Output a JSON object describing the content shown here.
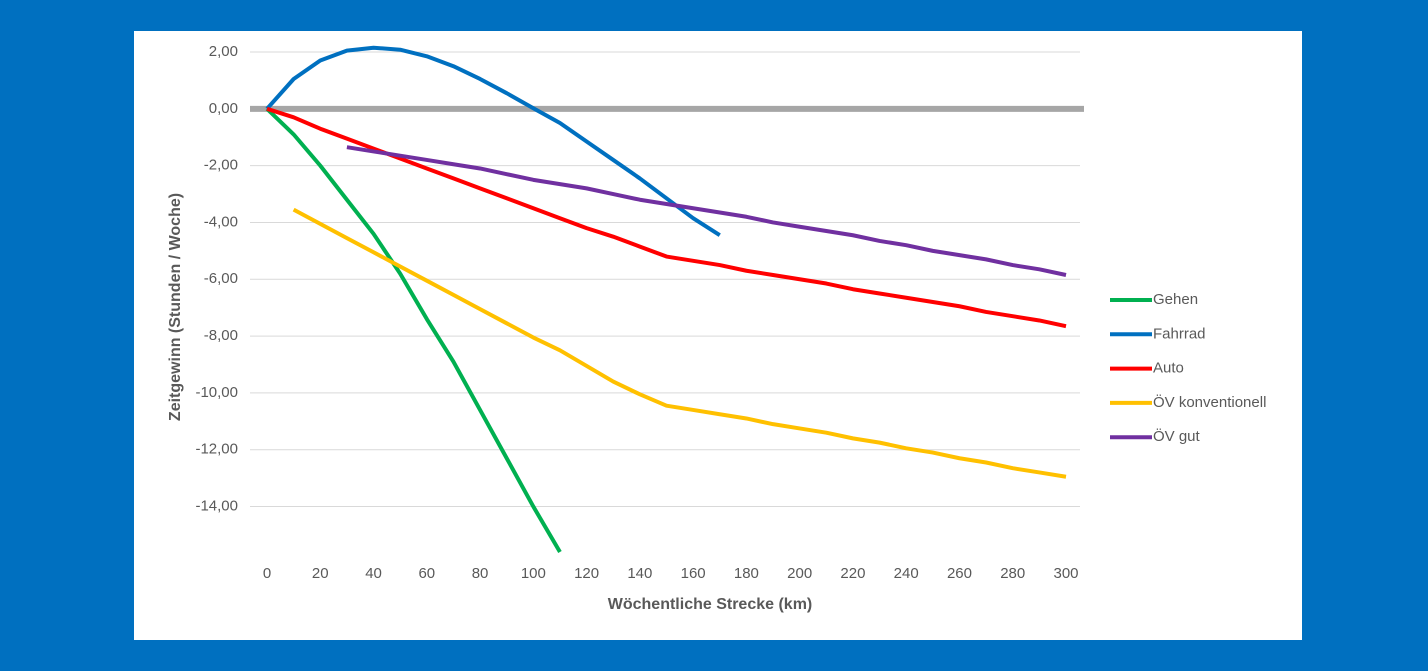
{
  "chart_data": {
    "type": "line",
    "x_label": "Wöchentliche Strecke (km)",
    "y_label": "Zeitgewinn (Stunden / Woche)",
    "x": [
      0,
      10,
      20,
      30,
      40,
      50,
      60,
      70,
      80,
      90,
      100,
      110,
      120,
      130,
      140,
      150,
      160,
      170,
      180,
      190,
      200,
      210,
      220,
      230,
      240,
      250,
      260,
      270,
      280,
      290,
      300
    ],
    "series": [
      {
        "name": "Gehen",
        "color": "#00b050",
        "values": [
          0,
          -0.9,
          -2.0,
          -3.2,
          -4.4,
          -5.8,
          -7.4,
          -8.9,
          -10.6,
          -12.3,
          -14.0,
          -15.6,
          null,
          null,
          null,
          null,
          null,
          null,
          null,
          null,
          null,
          null,
          null,
          null,
          null,
          null,
          null,
          null,
          null,
          null,
          null
        ]
      },
      {
        "name": "Fahrrad",
        "color": "#0070c0",
        "values": [
          0,
          1.05,
          1.7,
          2.05,
          2.15,
          2.08,
          1.85,
          1.5,
          1.05,
          0.55,
          0.02,
          -0.5,
          -1.15,
          -1.8,
          -2.45,
          -3.15,
          -3.85,
          -4.45,
          null,
          null,
          null,
          null,
          null,
          null,
          null,
          null,
          null,
          null,
          null,
          null,
          null
        ]
      },
      {
        "name": "Auto",
        "color": "#ff0000",
        "values": [
          0,
          -0.3,
          -0.7,
          -1.05,
          -1.4,
          -1.75,
          -2.1,
          -2.45,
          -2.8,
          -3.15,
          -3.5,
          -3.85,
          -4.2,
          -4.5,
          -4.85,
          -5.2,
          -5.35,
          -5.5,
          -5.7,
          -5.85,
          -6.0,
          -6.15,
          -6.35,
          -6.5,
          -6.65,
          -6.8,
          -6.95,
          -7.15,
          -7.3,
          -7.45,
          -7.65
        ]
      },
      {
        "name": "ÖV konventionell",
        "color": "#ffc000",
        "values": [
          null,
          -3.55,
          -4.05,
          -4.55,
          -5.05,
          -5.55,
          -6.05,
          -6.55,
          -7.05,
          -7.55,
          -8.05,
          -8.5,
          -9.05,
          -9.6,
          -10.05,
          -10.45,
          -10.6,
          -10.75,
          -10.9,
          -11.1,
          -11.25,
          -11.4,
          -11.6,
          -11.75,
          -11.95,
          -12.1,
          -12.3,
          -12.45,
          -12.65,
          -12.8,
          -12.95
        ]
      },
      {
        "name": "ÖV gut",
        "color": "#7030a0",
        "values": [
          null,
          null,
          null,
          -1.35,
          -1.5,
          -1.65,
          -1.8,
          -1.95,
          -2.1,
          -2.3,
          -2.5,
          -2.65,
          -2.8,
          -3.0,
          -3.2,
          -3.35,
          -3.5,
          -3.65,
          -3.8,
          -4.0,
          -4.15,
          -4.3,
          -4.45,
          -4.65,
          -4.8,
          -5.0,
          -5.15,
          -5.3,
          -5.5,
          -5.65,
          -5.85
        ]
      }
    ],
    "xlim": [
      0,
      300
    ],
    "xticks": [
      0,
      20,
      40,
      60,
      80,
      100,
      120,
      140,
      160,
      180,
      200,
      220,
      240,
      260,
      280,
      300
    ],
    "ylim": [
      -15.6,
      2
    ],
    "yticks": [
      {
        "value": 2,
        "label": "2,00"
      },
      {
        "value": 0,
        "label": "0,00"
      },
      {
        "value": -2,
        "label": "-2,00"
      },
      {
        "value": -4,
        "label": "-4,00"
      },
      {
        "value": -6,
        "label": "-6,00"
      },
      {
        "value": -8,
        "label": "-8,00"
      },
      {
        "value": -10,
        "label": "-10,00"
      },
      {
        "value": -12,
        "label": "-12,00"
      },
      {
        "value": -14,
        "label": "-14,00"
      }
    ],
    "grid": true,
    "legend": "right"
  }
}
